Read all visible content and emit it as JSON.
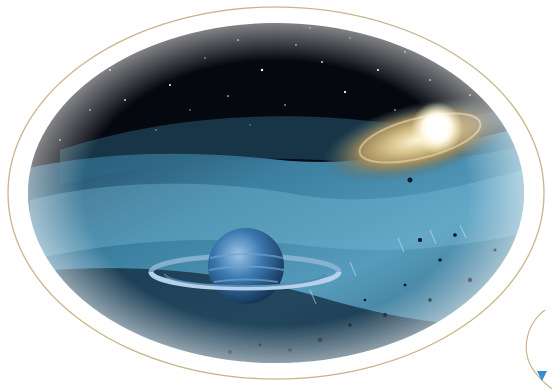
{
  "image": {
    "subject": "space-illustration",
    "colors": {
      "background": "#ffffff",
      "frame_outline": "#c9b48a",
      "space_dark": "#05080f",
      "nebula_blue": "#3f86a8",
      "disk_gold": "#b9a070",
      "star_white": "#ffffff",
      "planet_blue": "#3b78b0",
      "corner_accent": "#2f8fd0"
    },
    "elements": [
      "oval-frame",
      "starfield",
      "nebula-dust-lane",
      "protoplanetary-disk",
      "bright-star",
      "ringed-planet",
      "asteroid-debris",
      "corner-decoration"
    ]
  }
}
